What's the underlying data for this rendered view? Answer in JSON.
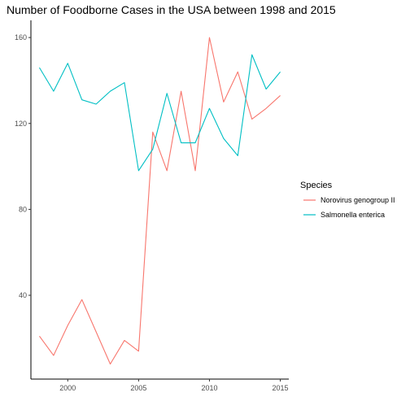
{
  "chart_data": {
    "type": "line",
    "title": "Number of Foodborne Cases in the USA between 1998 and 2015",
    "xlabel": "",
    "ylabel": "",
    "xlim": [
      1997.4,
      2015.6
    ],
    "ylim": [
      1,
      168
    ],
    "x_ticks": [
      2000,
      2005,
      2010,
      2015
    ],
    "y_ticks": [
      40,
      80,
      120,
      160
    ],
    "grid": false,
    "legend": {
      "title": "Species",
      "placement": "right"
    },
    "x": [
      1998,
      1999,
      2000,
      2001,
      2002,
      2003,
      2004,
      2005,
      2006,
      2007,
      2008,
      2009,
      2010,
      2011,
      2012,
      2013,
      2014,
      2015
    ],
    "series": [
      {
        "name": "Norovirus genogroup II",
        "color": "#F8766D",
        "values": [
          21,
          12,
          26,
          38,
          23,
          8,
          19,
          14,
          116,
          98,
          135,
          98,
          160,
          130,
          144,
          122,
          127,
          133
        ]
      },
      {
        "name": "Salmonella enterica",
        "color": "#00BFC4",
        "values": [
          146,
          135,
          148,
          131,
          129,
          135,
          139,
          98,
          108,
          134,
          111,
          111,
          127,
          113,
          105,
          152,
          136,
          144
        ]
      }
    ]
  }
}
